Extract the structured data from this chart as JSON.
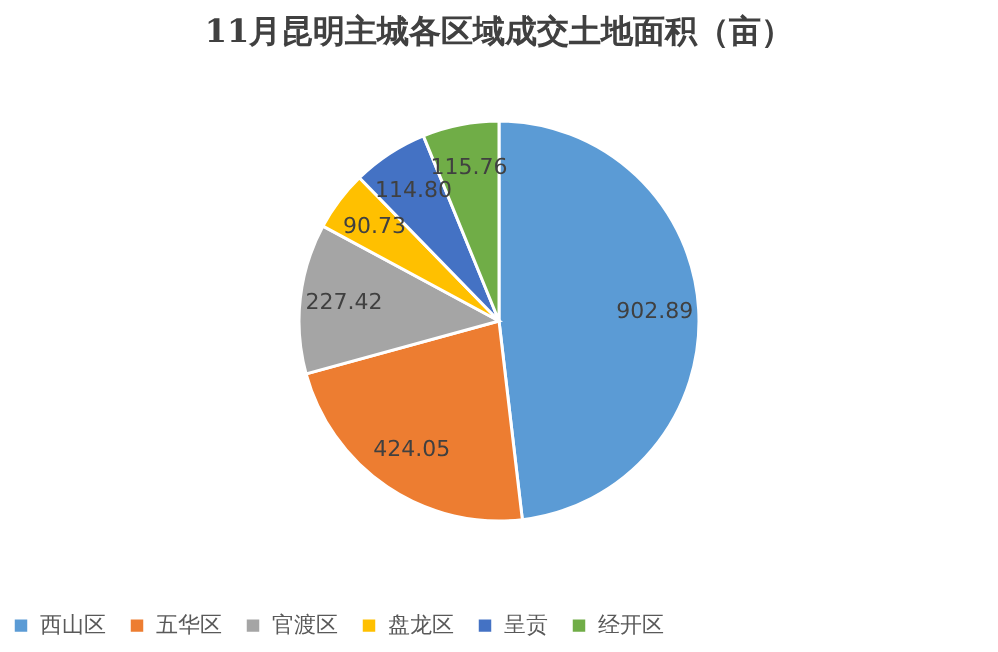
{
  "chart_data": {
    "type": "pie",
    "title": "11月昆明主城各区域成交土地面积（亩）",
    "categories": [
      "西山区",
      "五华区",
      "官渡区",
      "盘龙区",
      "呈贡",
      "经开区"
    ],
    "values": [
      902.89,
      424.05,
      227.42,
      90.73,
      114.8,
      115.76
    ],
    "value_labels": [
      "902.89",
      "424.05",
      "227.42",
      "90.73",
      "114.80",
      "115.76"
    ],
    "colors": [
      "#5b9bd5",
      "#ed7d31",
      "#a5a5a5",
      "#ffc000",
      "#4472c4",
      "#70ad47"
    ],
    "legend": "bottom"
  }
}
